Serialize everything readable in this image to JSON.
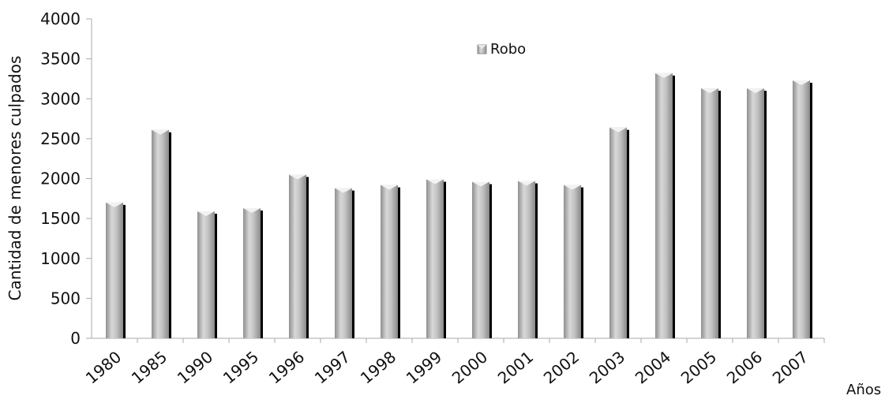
{
  "chart_data": {
    "type": "bar",
    "categories": [
      "1980",
      "1985",
      "1990",
      "1995",
      "1996",
      "1997",
      "1998",
      "1999",
      "2000",
      "2001",
      "2002",
      "2003",
      "2004",
      "2005",
      "2006",
      "2007"
    ],
    "series": [
      {
        "name": "Robo",
        "values": [
          1700,
          2610,
          1590,
          1630,
          2050,
          1880,
          1920,
          1990,
          1960,
          1970,
          1920,
          2640,
          3320,
          3130,
          3130,
          3230
        ]
      }
    ],
    "title": "",
    "xlabel": "Años",
    "ylabel": "Cantidad de menores culpados",
    "ylim": [
      0,
      4000
    ],
    "yticks": [
      0,
      500,
      1000,
      1500,
      2000,
      2500,
      3000,
      3500,
      4000
    ],
    "grid": false,
    "legend": "top-center",
    "colors": {
      "bar_light": "#d6d6d6",
      "bar_mid": "#a8a8a8",
      "bar_dark": "#8a8a8a",
      "bar_shadow": "#000000",
      "axis": "#aaaaaa",
      "text": "#111111"
    }
  }
}
